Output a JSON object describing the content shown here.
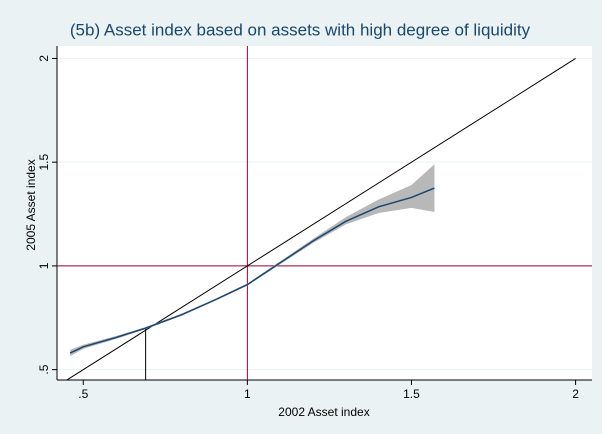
{
  "chart_data": {
    "type": "line",
    "title": "(5b) Asset index based on assets with high degree of liquidity",
    "x_label": "2002 Asset index",
    "y_label": "2005 Asset index",
    "x": [
      0.46,
      0.5,
      0.6,
      0.69,
      0.8,
      0.9,
      1,
      1.1,
      1.2,
      1.3,
      1.4,
      1.5,
      1.57
    ],
    "series": [
      {
        "color": "#1a476f",
        "values": [
          0.58,
          0.61,
          0.655,
          0.7,
          0.765,
          0.835,
          0.91,
          1.015,
          1.12,
          1.215,
          1.285,
          1.33,
          1.375
        ]
      }
    ],
    "ci_lower": [
      0.565,
      0.6,
      0.648,
      0.695,
      0.76,
      0.83,
      0.905,
      1.008,
      1.11,
      1.2,
      1.255,
      1.28,
      1.26
    ],
    "ci_upper": [
      0.595,
      0.62,
      0.662,
      0.705,
      0.77,
      0.84,
      0.915,
      1.022,
      1.13,
      1.235,
      1.32,
      1.39,
      1.49
    ],
    "ci_color": "#b8b8b8",
    "diagonal": {
      "x": [
        0.44,
        2
      ],
      "y": [
        0.44,
        2
      ],
      "color": "#000000"
    },
    "ref_x": 1,
    "ref_y": 1,
    "ref_color": "#990033",
    "drop_line": {
      "x": 0.69,
      "y": 0.7,
      "color": "#000000"
    },
    "xlim": [
      0.42,
      2.05
    ],
    "ylim": [
      0.45,
      2.06
    ],
    "xticks": [
      {
        "value": 0.5,
        "label": ".5"
      },
      1,
      1.5,
      2
    ],
    "yticks": [
      {
        "value": 0.5,
        "label": ".5"
      },
      1,
      1.5,
      2
    ],
    "grid": true
  }
}
